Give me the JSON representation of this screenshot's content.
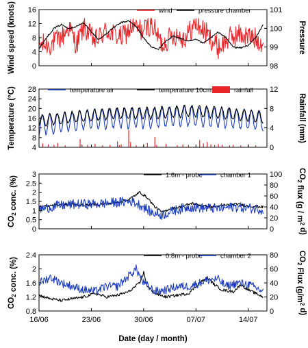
{
  "chart_data": [
    {
      "type": "line",
      "ylabel": "Wind speed (knots)",
      "y2label": "Pressure",
      "ylim": [
        0,
        16
      ],
      "yticks": [
        0,
        4,
        8,
        12,
        16
      ],
      "y2lim": [
        98,
        101
      ],
      "y2ticks": [
        "98",
        "99",
        "100",
        "101"
      ],
      "legend_position": "top",
      "series": [
        {
          "name": "wind",
          "axis": "left",
          "color": "#e8262a",
          "anchors": [
            [
              0,
              6
            ],
            [
              3,
              6
            ],
            [
              6,
              8
            ],
            [
              8,
              11
            ],
            [
              10,
              6
            ],
            [
              12,
              11
            ],
            [
              15,
              7
            ],
            [
              18,
              10
            ],
            [
              22,
              8
            ],
            [
              25,
              11
            ],
            [
              28,
              10
            ],
            [
              30,
              12
            ],
            [
              33,
              6
            ],
            [
              36,
              9
            ],
            [
              39,
              8
            ],
            [
              42,
              12
            ],
            [
              45,
              9
            ],
            [
              48,
              5
            ],
            [
              51,
              8
            ],
            [
              54,
              9
            ],
            [
              57,
              8
            ],
            [
              60,
              7
            ]
          ],
          "noise": 3.2,
          "lo": 0.5,
          "hi": 13.5
        },
        {
          "name": "pressure chamber",
          "axis": "right",
          "color": "#000000",
          "anchors": [
            [
              0,
              98.9
            ],
            [
              2,
              99.5
            ],
            [
              4,
              100.0
            ],
            [
              6,
              100.2
            ],
            [
              8,
              100.0
            ],
            [
              10,
              100.1
            ],
            [
              12,
              100.3
            ],
            [
              14,
              99.8
            ],
            [
              16,
              99.4
            ],
            [
              18,
              99.7
            ],
            [
              20,
              100.05
            ],
            [
              22,
              100.3
            ],
            [
              24,
              100.4
            ],
            [
              26,
              100.1
            ],
            [
              28,
              99.5
            ],
            [
              30,
              99.0
            ],
            [
              32,
              98.9
            ],
            [
              34,
              99.3
            ],
            [
              36,
              99.6
            ],
            [
              38,
              99.45
            ],
            [
              40,
              99.3
            ],
            [
              42,
              99.4
            ],
            [
              44,
              99.2
            ],
            [
              46,
              99.5
            ],
            [
              48,
              99.8
            ],
            [
              50,
              99.5
            ],
            [
              52,
              99.0
            ],
            [
              54,
              98.95
            ],
            [
              56,
              99.1
            ],
            [
              58,
              99.5
            ],
            [
              60,
              100.2
            ]
          ],
          "noise": 0.04,
          "lo": 98.2,
          "hi": 100.7
        }
      ]
    },
    {
      "type": "line+bar",
      "ylabel": "Temperature (°C)",
      "y2label": "Rainfall (mm)",
      "ylim": [
        4,
        28
      ],
      "yticks": [
        4,
        8,
        12,
        16,
        20,
        24,
        28
      ],
      "y2lim": [
        0,
        12
      ],
      "y2ticks": [
        0,
        4,
        8,
        12
      ],
      "legend_position": "top",
      "series": [
        {
          "name": "temperature air",
          "axis": "left",
          "color": "#1f3fbf",
          "mean": [
            [
              0,
              13
            ],
            [
              10,
              15
            ],
            [
              20,
              16
            ],
            [
              30,
              16
            ],
            [
              40,
              17
            ],
            [
              50,
              16
            ],
            [
              60,
              15
            ]
          ],
          "amp": 4.0,
          "noise": 0.6,
          "lo": 8,
          "hi": 24.5
        },
        {
          "name": "temperature 10cm",
          "axis": "left",
          "color": "#000000",
          "mean": [
            [
              0,
              15
            ],
            [
              10,
              16.5
            ],
            [
              20,
              18
            ],
            [
              30,
              18
            ],
            [
              40,
              19
            ],
            [
              50,
              18
            ],
            [
              60,
              16.5
            ]
          ],
          "amp": 2.3,
          "noise": 0.4,
          "lo": 12,
          "hi": 25
        },
        {
          "name": "rainfall",
          "axis": "right",
          "color": "#e8262a",
          "type": "bar",
          "bars": [
            [
              1,
              0.8
            ],
            [
              2.5,
              0.6
            ],
            [
              4,
              0.5
            ],
            [
              5,
              0.9
            ],
            [
              7,
              0.4
            ],
            [
              11,
              1.7
            ],
            [
              11.5,
              0.6
            ],
            [
              13,
              0.5
            ],
            [
              15,
              0.7
            ],
            [
              17,
              0.4
            ],
            [
              19,
              0.5
            ],
            [
              21,
              1.2
            ],
            [
              21.5,
              0.4
            ],
            [
              22,
              0.6
            ],
            [
              24,
              3.6
            ],
            [
              24.5,
              1.1
            ],
            [
              26,
              0.4
            ],
            [
              28,
              0.6
            ],
            [
              29,
              0.9
            ],
            [
              31,
              2.1
            ],
            [
              31.5,
              0.5
            ],
            [
              34,
              0.7
            ],
            [
              37,
              0.4
            ],
            [
              38.5,
              0.6
            ],
            [
              40,
              0.5
            ],
            [
              43,
              1.5
            ],
            [
              44,
              0.8
            ],
            [
              45,
              1.1
            ],
            [
              46,
              0.6
            ],
            [
              47,
              0.5
            ],
            [
              48,
              0.7
            ],
            [
              49,
              0.5
            ],
            [
              51,
              0.4
            ],
            [
              52,
              0.5
            ],
            [
              54,
              0.4
            ],
            [
              56,
              0.6
            ],
            [
              58,
              0.4
            ]
          ]
        }
      ]
    },
    {
      "type": "line",
      "ylabel": "CO2 conc. (%)",
      "y2label": "CO2 flux (g / m2 d)",
      "ylim": [
        0,
        3
      ],
      "yticks": [
        "0",
        "0.5",
        "1",
        "1.5",
        "2",
        "2.5",
        "3"
      ],
      "y2lim": [
        0,
        100
      ],
      "y2ticks": [
        0,
        20,
        40,
        60,
        80,
        100
      ],
      "legend_position": "top",
      "series": [
        {
          "name": "1.6m - probe",
          "axis": "left",
          "color": "#000000",
          "anchors": [
            [
              0,
              1.2
            ],
            [
              4,
              1.3
            ],
            [
              8,
              1.35
            ],
            [
              12,
              1.3
            ],
            [
              16,
              1.35
            ],
            [
              20,
              1.4
            ],
            [
              24,
              1.6
            ],
            [
              27,
              2.0
            ],
            [
              29,
              1.7
            ],
            [
              31,
              1.2
            ],
            [
              33,
              0.9
            ],
            [
              35,
              1.1
            ],
            [
              38,
              1.2
            ],
            [
              41,
              1.4
            ],
            [
              44,
              1.25
            ],
            [
              47,
              1.2
            ],
            [
              50,
              1.3
            ],
            [
              53,
              1.35
            ],
            [
              56,
              1.25
            ],
            [
              60,
              1.2
            ]
          ],
          "noise": 0.07,
          "lo": 0.7,
          "hi": 2.2
        },
        {
          "name": "chamber 1",
          "axis": "right",
          "color": "#1f3fbf",
          "anchors": [
            [
              0,
              35
            ],
            [
              5,
              42
            ],
            [
              10,
              45
            ],
            [
              15,
              45
            ],
            [
              20,
              48
            ],
            [
              25,
              50
            ],
            [
              28,
              40
            ],
            [
              30,
              30
            ],
            [
              33,
              25
            ],
            [
              36,
              33
            ],
            [
              40,
              40
            ],
            [
              44,
              38
            ],
            [
              48,
              37
            ],
            [
              52,
              40
            ],
            [
              56,
              38
            ],
            [
              60,
              35
            ]
          ],
          "noise": 9,
          "lo": 15,
          "hi": 85
        }
      ]
    },
    {
      "type": "line",
      "ylabel": "CO2 conc. (%)",
      "y2label": "CO2 Flux (g/m2 d)",
      "ylim": [
        0.8,
        2.4
      ],
      "yticks": [
        "0.8",
        "1.2",
        "1.6",
        "2",
        "2.4"
      ],
      "y2lim": [
        0,
        80
      ],
      "y2ticks": [
        0,
        20,
        40,
        60,
        80
      ],
      "legend_position": "top",
      "series": [
        {
          "name": "0.8m - probe",
          "axis": "left",
          "color": "#000000",
          "anchors": [
            [
              0,
              1.25
            ],
            [
              3,
              1.15
            ],
            [
              6,
              1.1
            ],
            [
              9,
              1.15
            ],
            [
              12,
              1.2
            ],
            [
              15,
              1.3
            ],
            [
              18,
              1.2
            ],
            [
              21,
              1.25
            ],
            [
              24,
              1.35
            ],
            [
              27,
              1.6
            ],
            [
              28,
              1.9
            ],
            [
              29,
              1.5
            ],
            [
              31,
              1.3
            ],
            [
              34,
              1.2
            ],
            [
              37,
              1.25
            ],
            [
              40,
              1.3
            ],
            [
              43,
              1.6
            ],
            [
              45,
              1.75
            ],
            [
              47,
              1.55
            ],
            [
              49,
              1.4
            ],
            [
              52,
              1.35
            ],
            [
              54,
              1.55
            ],
            [
              56,
              1.4
            ],
            [
              58,
              1.3
            ],
            [
              60,
              1.2
            ]
          ],
          "noise": 0.04,
          "lo": 0.95,
          "hi": 2.0
        },
        {
          "name": "chamber 2",
          "axis": "right",
          "color": "#1f3fbf",
          "anchors": [
            [
              0,
              40
            ],
            [
              3,
              48
            ],
            [
              6,
              40
            ],
            [
              9,
              35
            ],
            [
              12,
              30
            ],
            [
              15,
              28
            ],
            [
              18,
              35
            ],
            [
              21,
              35
            ],
            [
              24,
              50
            ],
            [
              26,
              60
            ],
            [
              28,
              40
            ],
            [
              31,
              28
            ],
            [
              34,
              30
            ],
            [
              37,
              35
            ],
            [
              40,
              35
            ],
            [
              43,
              40
            ],
            [
              46,
              45
            ],
            [
              48,
              45
            ],
            [
              50,
              35
            ],
            [
              53,
              40
            ],
            [
              56,
              38
            ],
            [
              60,
              28
            ]
          ],
          "noise": 6,
          "lo": 15,
          "hi": 70
        }
      ]
    }
  ],
  "x_axis": {
    "label": "Date (day / month)",
    "ticks": [
      {
        "day": 0,
        "label": "16/06"
      },
      {
        "day": 7,
        "label": "23/06"
      },
      {
        "day": 14,
        "label": "30/06"
      },
      {
        "day": 21,
        "label": "07/07"
      },
      {
        "day": 28,
        "label": "14/07"
      }
    ],
    "range_days": [
      0,
      30.5
    ]
  }
}
